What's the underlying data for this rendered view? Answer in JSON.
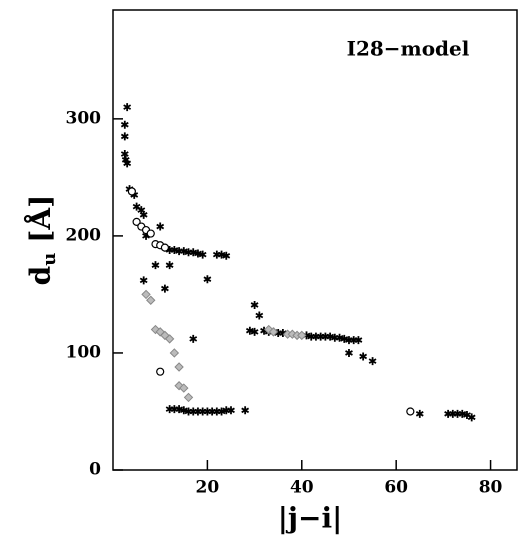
{
  "chart_data": {
    "type": "scatter",
    "annotation": "I28−model",
    "x_label": "|j−i|",
    "y_label": [
      "d",
      "u",
      " [Å]"
    ],
    "xlim": [
      0,
      85.6
    ],
    "ylim": [
      0,
      393
    ],
    "xticks": [
      20,
      40,
      60,
      80
    ],
    "yticks": [
      0,
      100,
      200,
      300
    ],
    "series": [
      {
        "marker": "star",
        "color": "#000000",
        "x": [
          3,
          2.5,
          2.5,
          2.5,
          2.7,
          3,
          3.5,
          4,
          4.5,
          5,
          6,
          6.5,
          7,
          6.5,
          9,
          10,
          11,
          12,
          11,
          12,
          13,
          14,
          15,
          16,
          17,
          18,
          19,
          22,
          23,
          24,
          20,
          17,
          12,
          13,
          14,
          15,
          16,
          17,
          18,
          19,
          20,
          21,
          22,
          23,
          24,
          25,
          28,
          30,
          31,
          29,
          30,
          32,
          33,
          34,
          35,
          36,
          41,
          42,
          43,
          44,
          45,
          46,
          47,
          48,
          49,
          50,
          51,
          52,
          50,
          53,
          55,
          65,
          71,
          72,
          73,
          74,
          75,
          76
        ],
        "values": [
          310,
          295,
          285,
          270,
          265,
          262,
          240,
          238,
          235,
          225,
          222,
          218,
          200,
          162,
          175,
          208,
          155,
          175,
          190,
          188,
          188,
          187,
          187,
          186,
          186,
          185,
          184,
          184,
          184,
          183,
          163,
          112,
          52,
          52,
          52,
          51,
          50,
          50,
          50,
          50,
          50,
          50,
          50,
          50,
          51,
          51,
          51,
          141,
          132,
          119,
          118,
          119,
          118,
          118,
          117,
          117,
          115,
          114,
          114,
          114,
          114,
          114,
          113,
          113,
          112,
          111,
          111,
          111,
          100,
          97,
          93,
          48,
          48,
          48,
          48,
          48,
          47,
          45
        ]
      },
      {
        "marker": "circle",
        "color": "#000000",
        "x": [
          4,
          5,
          6,
          7,
          8,
          9,
          10,
          11,
          10,
          63
        ],
        "values": [
          238,
          212,
          208,
          205,
          202,
          193,
          192,
          190,
          84,
          50
        ]
      },
      {
        "marker": "diamond",
        "color": "#888888",
        "x": [
          7,
          8,
          9,
          10,
          11,
          12,
          13,
          14,
          14,
          15,
          16,
          33,
          34,
          37,
          38,
          39,
          40
        ],
        "values": [
          150,
          145,
          120,
          118,
          115,
          112,
          100,
          88,
          72,
          70,
          62,
          120,
          118,
          116,
          116,
          115,
          115
        ]
      }
    ]
  }
}
